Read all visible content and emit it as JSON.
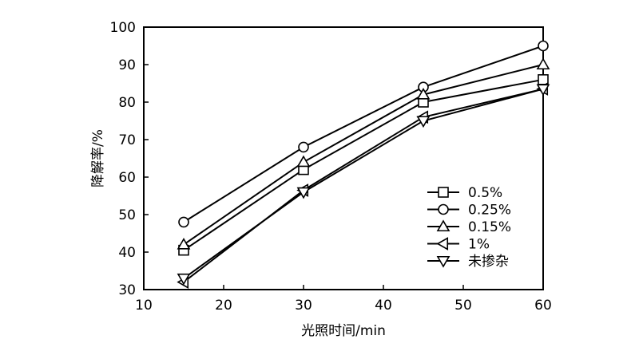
{
  "chart_data": {
    "type": "line",
    "xlabel": "光照时间/min",
    "ylabel": "降解率/%",
    "xlim": [
      10,
      60
    ],
    "ylim": [
      30,
      100
    ],
    "xticks": [
      10,
      20,
      30,
      40,
      50,
      60
    ],
    "yticks": [
      30,
      40,
      50,
      60,
      70,
      80,
      90,
      100
    ],
    "x": [
      15,
      30,
      45,
      60
    ],
    "grid": false,
    "legend_position": "lower-right",
    "series": [
      {
        "name": "0.5%",
        "marker": "square",
        "values": [
          40.5,
          62,
          80,
          86
        ]
      },
      {
        "name": "0.25%",
        "marker": "circle",
        "values": [
          48,
          68,
          84,
          95
        ]
      },
      {
        "name": "0.15%",
        "marker": "triangle-up",
        "values": [
          42,
          64,
          82,
          90
        ]
      },
      {
        "name": "1%",
        "marker": "triangle-left",
        "values": [
          32,
          56.5,
          76,
          83.5
        ]
      },
      {
        "name": "未掺杂",
        "marker": "triangle-down",
        "values": [
          33,
          56,
          75,
          83.5
        ]
      }
    ]
  }
}
